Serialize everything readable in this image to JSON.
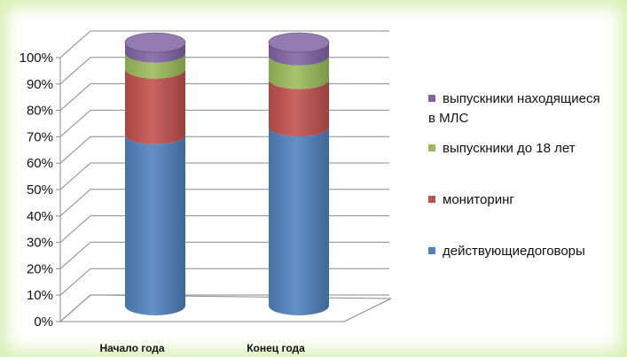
{
  "chart_data": {
    "type": "bar",
    "stacked": true,
    "percent": true,
    "categories": [
      "Начало года",
      "Конец года"
    ],
    "series": [
      {
        "name": "действующиедоговоры",
        "values": [
          65,
          68
        ],
        "color": "#4f81bd"
      },
      {
        "name": "мониторинг",
        "values": [
          25,
          18
        ],
        "color": "#c0504d"
      },
      {
        "name": "выпускники до 18 лет",
        "values": [
          6,
          9
        ],
        "color": "#9bbb59"
      },
      {
        "name": "выпускники находящиеся в МЛС",
        "values": [
          4,
          5
        ],
        "color": "#8064a2"
      }
    ],
    "y_ticks": [
      "0%",
      "10%",
      "20%",
      "30%",
      "40%",
      "50%",
      "60%",
      "70%",
      "80%",
      "90%",
      "100%"
    ],
    "ylim": [
      0,
      100
    ],
    "grid": true,
    "legend_position": "right"
  }
}
